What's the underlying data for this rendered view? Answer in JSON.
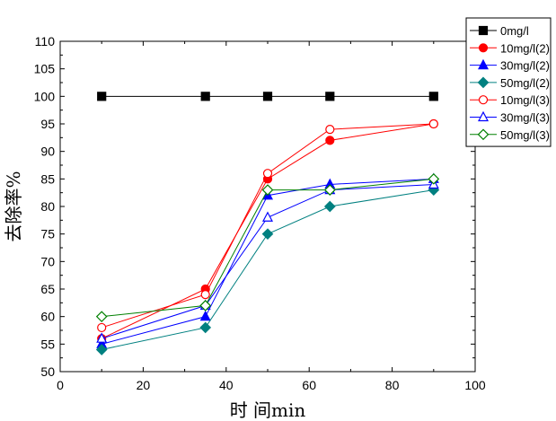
{
  "chart_data": {
    "type": "line",
    "xlabel": "时 间min",
    "ylabel": "去除率%",
    "xlim": [
      0,
      100
    ],
    "ylim": [
      50,
      110
    ],
    "x_ticks": [
      0,
      20,
      40,
      60,
      80,
      100
    ],
    "y_ticks": [
      50,
      55,
      60,
      65,
      70,
      75,
      80,
      85,
      90,
      95,
      100,
      105,
      110
    ],
    "grid": false,
    "legend_position": "top-right",
    "x": [
      10,
      35,
      50,
      65,
      90
    ],
    "series": [
      {
        "name": "0mg/l",
        "values": [
          100,
          100,
          100,
          100,
          100
        ],
        "color": "#000000",
        "marker": "square",
        "filled": true
      },
      {
        "name": "10mg/l(2)",
        "values": [
          56,
          65,
          85,
          92,
          95
        ],
        "color": "#ff0000",
        "marker": "circle",
        "filled": true
      },
      {
        "name": "30mg/l(2)",
        "values": [
          55,
          60,
          82,
          84,
          85
        ],
        "color": "#0000ff",
        "marker": "triangle",
        "filled": true
      },
      {
        "name": "50mg/l(2)",
        "values": [
          54,
          58,
          75,
          80,
          83
        ],
        "color": "#008080",
        "marker": "diamond",
        "filled": true
      },
      {
        "name": "10mg/l(3)",
        "values": [
          58,
          64,
          86,
          94,
          95
        ],
        "color": "#ff0000",
        "marker": "circle",
        "filled": false
      },
      {
        "name": "30mg/l(3)",
        "values": [
          56,
          62,
          78,
          83,
          84
        ],
        "color": "#0000ff",
        "marker": "triangle",
        "filled": false
      },
      {
        "name": "50mg/l(3)",
        "values": [
          60,
          62,
          83,
          83,
          85
        ],
        "color": "#008000",
        "marker": "diamond",
        "filled": false
      }
    ]
  }
}
